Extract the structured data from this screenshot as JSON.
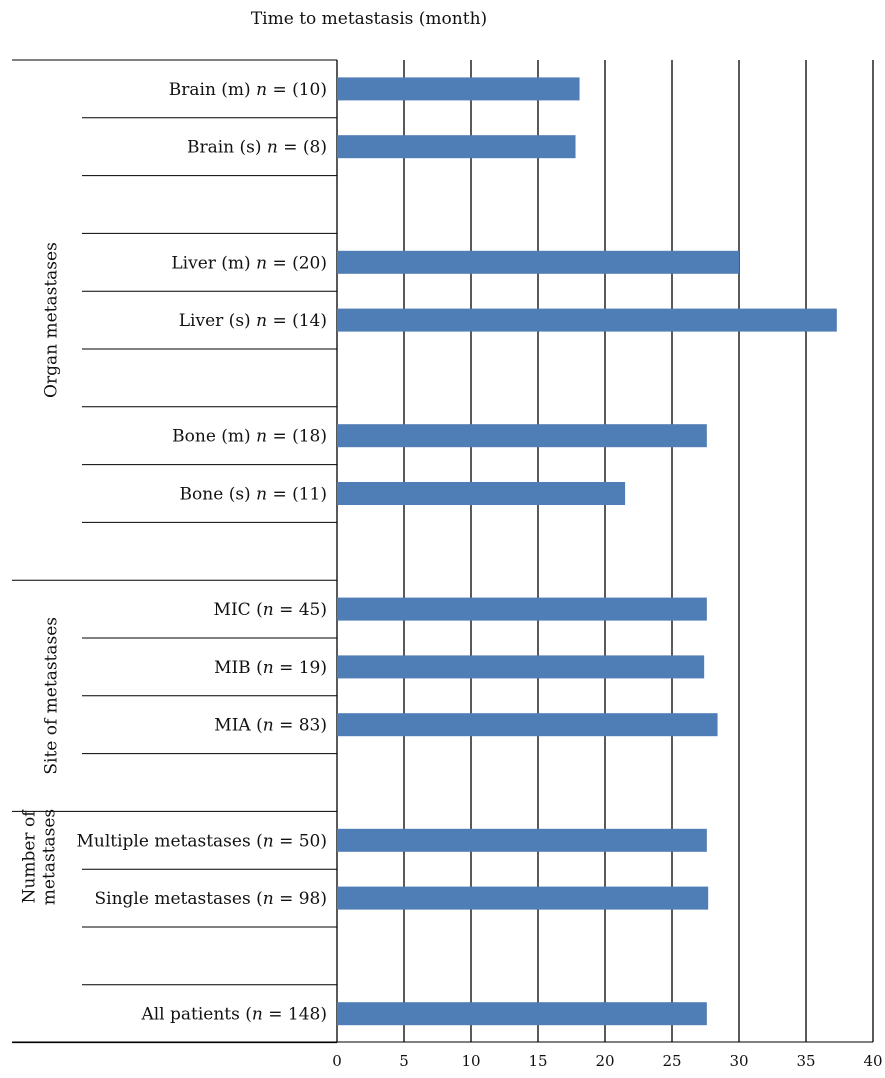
{
  "chart_data": {
    "type": "bar",
    "orientation": "horizontal",
    "title": "Time to metastasis (month)",
    "xlim": [
      0,
      40
    ],
    "x_ticks": [
      0,
      5,
      10,
      15,
      20,
      25,
      30,
      35,
      40
    ],
    "grid": true,
    "legend": "none",
    "bar_color": "#4F7DB5",
    "categories": [
      {
        "label": "Brain (m) ",
        "n": "n = (10)",
        "value": 18.1
      },
      {
        "label": "Brain (s) ",
        "n": "n = (8)",
        "value": 17.8
      },
      {
        "label": "Liver (m)  ",
        "n": "n = (20)",
        "value": 30.0
      },
      {
        "label": "Liver (s)  ",
        "n": "n = (14)",
        "value": 37.3
      },
      {
        "label": "Bone (m) ",
        "n": "n = (18)",
        "value": 27.6
      },
      {
        "label": "Bone (s) ",
        "n": "n = (11)",
        "value": 21.5
      },
      {
        "label": "MIC (",
        "n": "n = 45)",
        "value": 27.6
      },
      {
        "label": "MIB (",
        "n": "n = 19)",
        "value": 27.4
      },
      {
        "label": "MIA (",
        "n": "n = 83)",
        "value": 28.4
      },
      {
        "label": "Multiple metastases (",
        "n": "n = 50)",
        "value": 27.6
      },
      {
        "label": "Single metastases (",
        "n": "n = 98)",
        "value": 27.7
      },
      {
        "label": "All patients (",
        "n": "n = 148)",
        "value": 27.6
      }
    ],
    "groups": [
      {
        "label": "Organ metastases",
        "lines": [
          "Organ metastases"
        ]
      },
      {
        "label": "Site of metastases",
        "lines": [
          "Site of metastases"
        ]
      },
      {
        "label": "Number of metastases",
        "lines": [
          "Number of",
          "metastases"
        ]
      }
    ]
  }
}
